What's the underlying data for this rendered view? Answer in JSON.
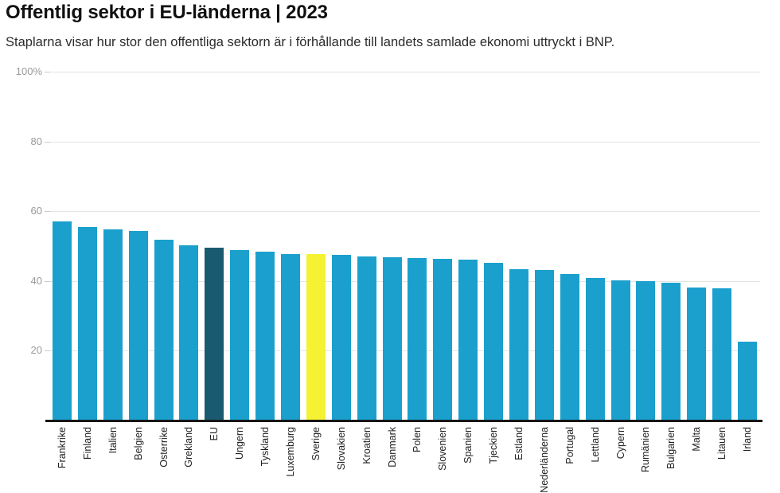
{
  "page": {
    "title": "Offentlig sektor i EU-länderna | 2023",
    "subtitle": "Staplarna visar hur stor den offentliga sektorn är i förhållande till landets samlade ekonomi uttryckt i BNP."
  },
  "chart_data": {
    "type": "bar",
    "title": "Offentlig sektor i EU-länderna | 2023",
    "subtitle": "Staplarna visar hur stor den offentliga sektorn är i förhållande till landets samlade ekonomi uttryckt i BNP.",
    "xlabel": "",
    "ylabel": "",
    "ylim": [
      0,
      100
    ],
    "grid": "horizontal",
    "legend": "none",
    "yticks": [
      {
        "value": 100,
        "label": "100%"
      },
      {
        "value": 80,
        "label": "80"
      },
      {
        "value": 60,
        "label": "60"
      },
      {
        "value": 40,
        "label": "40"
      },
      {
        "value": 20,
        "label": "20"
      }
    ],
    "categories": [
      "Frankrike",
      "Finland",
      "Italien",
      "Belgien",
      "Osterrike",
      "Grekland",
      "EU",
      "Ungern",
      "Tyskland",
      "Luxemburg",
      "Sverige",
      "Slovakien",
      "Kroatien",
      "Danmark",
      "Polen",
      "Slovenien",
      "Spanien",
      "Tjeckien",
      "Estland",
      "Nederländerna",
      "Portugal",
      "Lettland",
      "Cypern",
      "Rumänien",
      "Bulgarien",
      "Malta",
      "Litauen",
      "Irland"
    ],
    "values": [
      57.0,
      55.4,
      54.9,
      54.3,
      51.8,
      50.2,
      49.6,
      48.9,
      48.3,
      47.8,
      47.7,
      47.6,
      47.1,
      46.9,
      46.6,
      46.4,
      46.1,
      45.3,
      43.3,
      43.2,
      42.0,
      40.8,
      40.1,
      40.0,
      39.5,
      38.1,
      37.9,
      22.7
    ],
    "highlight_map": {
      "EU": "eu",
      "Sverige": "sverige"
    },
    "colors": {
      "bar_default": "#1BA0CD",
      "bar_eu": "#1A5A70",
      "bar_sverige": "#F4F233",
      "axis": "#161616",
      "gridline": "#e4e4e4",
      "tick": "#c9c9c9",
      "y_label": "#9a9a9a",
      "x_label": "#1f1f1f",
      "title": "#111111",
      "subtitle": "#2b2b2b"
    }
  }
}
